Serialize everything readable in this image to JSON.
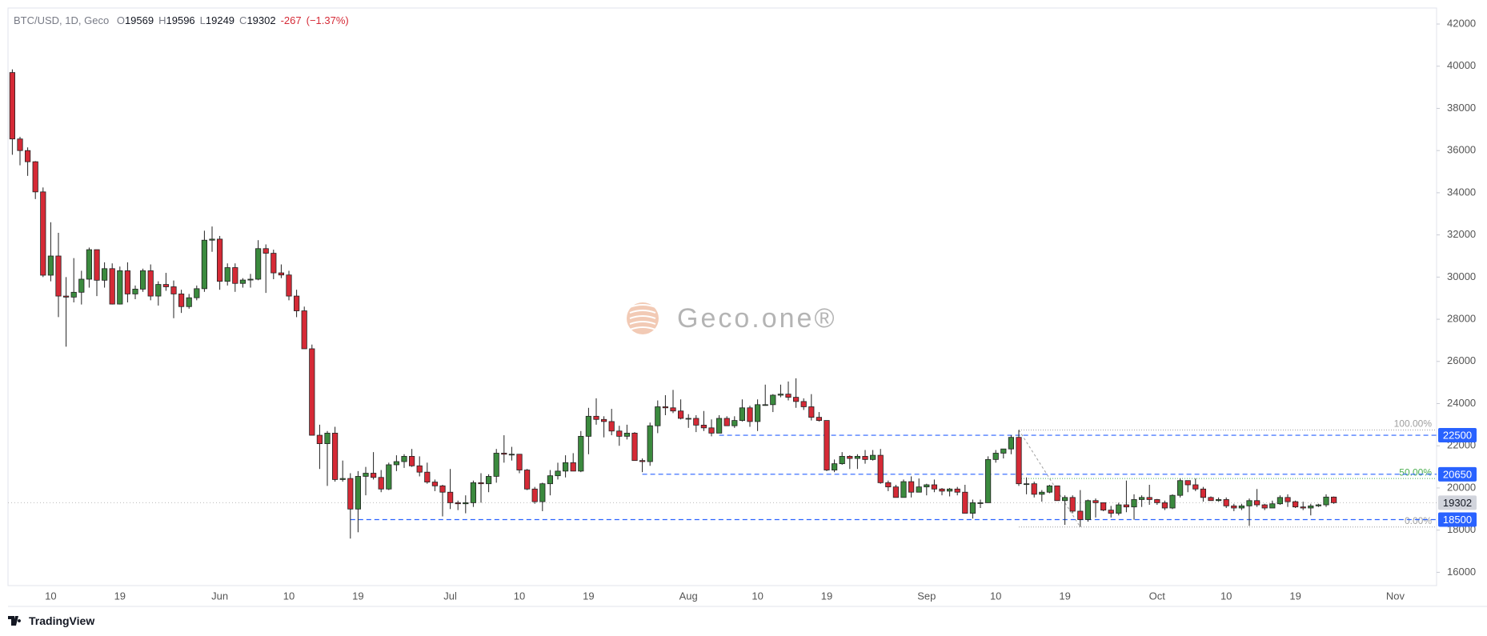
{
  "chart_data": {
    "type": "candlestick",
    "legend": {
      "symbol": "BTC/USD, 1D, Geco",
      "fields": [
        {
          "key": "O",
          "value": 19569
        },
        {
          "key": "H",
          "value": 19596
        },
        {
          "key": "L",
          "value": 19249
        },
        {
          "key": "C",
          "value": 19302
        }
      ],
      "change": -267,
      "change_pct": {
        "value": -1.37,
        "label": "(−1.37%)"
      }
    },
    "watermark": "Geco.one®",
    "footer": "TradingView",
    "up_color": "#3b8a3e",
    "down_color": "#d52a36",
    "level_color": "#2962ff",
    "fib_color": "#9e9e9e",
    "fib_mid_color": "#4caf50",
    "ylim": [
      15370,
      42760
    ],
    "yticks": [
      16000,
      18000,
      20000,
      22000,
      24000,
      26000,
      28000,
      30000,
      32000,
      34000,
      36000,
      38000,
      40000,
      42000
    ],
    "price_levels": [
      22500,
      20650,
      18500
    ],
    "last_price": 19302,
    "fib": {
      "high": 22750,
      "low": 18150,
      "levels": [
        {
          "value": 100,
          "label": "100.00%"
        },
        {
          "value": 50,
          "label": "50.00%"
        },
        {
          "value": 0,
          "label": "0.00%"
        }
      ]
    },
    "categories": [
      null,
      null,
      null,
      null,
      null,
      "10",
      null,
      null,
      null,
      null,
      null,
      null,
      null,
      null,
      "19",
      null,
      null,
      null,
      null,
      null,
      null,
      null,
      null,
      null,
      null,
      null,
      null,
      "Jun",
      null,
      null,
      null,
      null,
      null,
      null,
      null,
      null,
      "10",
      null,
      null,
      null,
      null,
      null,
      null,
      null,
      null,
      "19",
      null,
      null,
      null,
      null,
      null,
      null,
      null,
      null,
      null,
      null,
      null,
      "Jul",
      null,
      null,
      null,
      null,
      null,
      null,
      null,
      null,
      "10",
      null,
      null,
      null,
      null,
      null,
      null,
      null,
      null,
      "19",
      null,
      null,
      null,
      null,
      null,
      null,
      null,
      null,
      null,
      null,
      null,
      null,
      "Aug",
      null,
      null,
      null,
      null,
      null,
      null,
      null,
      null,
      "10",
      null,
      null,
      null,
      null,
      null,
      null,
      null,
      null,
      "19",
      null,
      null,
      null,
      null,
      null,
      null,
      null,
      null,
      null,
      null,
      null,
      null,
      "Sep",
      null,
      null,
      null,
      null,
      null,
      null,
      null,
      null,
      "10",
      null,
      null,
      null,
      null,
      null,
      null,
      null,
      null,
      "19",
      null,
      null,
      null,
      null,
      null,
      null,
      null,
      null,
      null,
      null,
      null,
      "Oct",
      null,
      null,
      null,
      null,
      null,
      null,
      null,
      null,
      "10",
      null,
      null,
      null,
      null,
      null,
      null,
      null,
      null,
      "19",
      null,
      null,
      null,
      null,
      null,
      null,
      null,
      null,
      null,
      null,
      null,
      null,
      "Nov",
      null,
      null,
      null,
      null,
      null
    ],
    "ohlc": [
      [
        39700,
        39850,
        35800,
        36550
      ],
      [
        36550,
        36650,
        35300,
        36000
      ],
      [
        36000,
        36150,
        34800,
        35470
      ],
      [
        35470,
        35500,
        33700,
        34040
      ],
      [
        34040,
        34250,
        30000,
        30090
      ],
      [
        30090,
        32600,
        29800,
        31000
      ],
      [
        31000,
        32100,
        28100,
        29100
      ],
      [
        29100,
        30000,
        26700,
        29050
      ],
      [
        29050,
        30900,
        28800,
        29280
      ],
      [
        29280,
        30300,
        28700,
        29900
      ],
      [
        29900,
        31400,
        29500,
        31300
      ],
      [
        31300,
        31300,
        29100,
        29850
      ],
      [
        29850,
        30700,
        29500,
        30400
      ],
      [
        30400,
        30650,
        28700,
        28720
      ],
      [
        28720,
        30500,
        28700,
        30300
      ],
      [
        30300,
        30700,
        28800,
        29200
      ],
      [
        29200,
        29600,
        28950,
        29430
      ],
      [
        29430,
        30400,
        29300,
        30300
      ],
      [
        30300,
        30600,
        28900,
        29100
      ],
      [
        29100,
        29800,
        28650,
        29650
      ],
      [
        29650,
        30200,
        29350,
        29540
      ],
      [
        29540,
        29840,
        28050,
        29200
      ],
      [
        29200,
        29400,
        28300,
        28600
      ],
      [
        28600,
        29200,
        28500,
        29020
      ],
      [
        29020,
        29600,
        28900,
        29450
      ],
      [
        29450,
        32200,
        29300,
        31750
      ],
      [
        31750,
        32400,
        31200,
        31800
      ],
      [
        31800,
        31950,
        29400,
        29800
      ],
      [
        29800,
        30650,
        29600,
        30450
      ],
      [
        30450,
        30650,
        29300,
        29700
      ],
      [
        29700,
        29950,
        29500,
        29860
      ],
      [
        29860,
        30150,
        29500,
        29900
      ],
      [
        29900,
        31750,
        29850,
        31350
      ],
      [
        31350,
        31550,
        29250,
        31130
      ],
      [
        31130,
        31300,
        29900,
        30200
      ],
      [
        30200,
        30600,
        29950,
        30100
      ],
      [
        30100,
        30300,
        28900,
        29100
      ],
      [
        29100,
        29400,
        28100,
        28400
      ],
      [
        28400,
        28600,
        26600,
        26600
      ],
      [
        26600,
        26800,
        22600,
        22500
      ],
      [
        22500,
        23000,
        20900,
        22100
      ],
      [
        22100,
        22700,
        20100,
        22600
      ],
      [
        22600,
        22900,
        20300,
        20400
      ],
      [
        20400,
        21300,
        20300,
        20450
      ],
      [
        20450,
        20700,
        17600,
        19000
      ],
      [
        19000,
        20800,
        17900,
        20550
      ],
      [
        20550,
        21000,
        19650,
        20700
      ],
      [
        20700,
        21700,
        20400,
        20500
      ],
      [
        20500,
        20850,
        19800,
        19950
      ],
      [
        19950,
        21200,
        19900,
        21100
      ],
      [
        21100,
        21550,
        20800,
        21250
      ],
      [
        21250,
        21600,
        20950,
        21500
      ],
      [
        21500,
        21850,
        21000,
        21050
      ],
      [
        21050,
        21500,
        20550,
        20750
      ],
      [
        20750,
        21200,
        20200,
        20280
      ],
      [
        20280,
        20400,
        19850,
        20100
      ],
      [
        20100,
        20150,
        18650,
        19800
      ],
      [
        19800,
        20900,
        19000,
        19300
      ],
      [
        19300,
        19400,
        18950,
        19250
      ],
      [
        19250,
        19650,
        18800,
        19300
      ],
      [
        19300,
        20350,
        19100,
        20250
      ],
      [
        20250,
        20700,
        19300,
        20200
      ],
      [
        20200,
        20650,
        19800,
        20550
      ],
      [
        20550,
        21850,
        20250,
        21650
      ],
      [
        21650,
        22500,
        21200,
        21600
      ],
      [
        21600,
        21950,
        21300,
        21600
      ],
      [
        21600,
        21600,
        20700,
        20850
      ],
      [
        20850,
        20900,
        19900,
        19950
      ],
      [
        19950,
        20050,
        19250,
        19350
      ],
      [
        19350,
        20250,
        18900,
        20200
      ],
      [
        20200,
        20850,
        19650,
        20580
      ],
      [
        20580,
        21200,
        20400,
        20800
      ],
      [
        20800,
        21550,
        20500,
        21200
      ],
      [
        21200,
        21650,
        20800,
        20800
      ],
      [
        20800,
        22700,
        20750,
        22450
      ],
      [
        22450,
        23800,
        21600,
        23400
      ],
      [
        23400,
        24250,
        23000,
        23250
      ],
      [
        23250,
        23400,
        22400,
        23150
      ],
      [
        23150,
        23750,
        22500,
        22700
      ],
      [
        22700,
        22950,
        22000,
        22450
      ],
      [
        22450,
        23000,
        22300,
        22600
      ],
      [
        22600,
        22650,
        21300,
        21300
      ],
      [
        21300,
        21400,
        20750,
        21250
      ],
      [
        21250,
        23100,
        21050,
        22950
      ],
      [
        22950,
        24150,
        22600,
        23850
      ],
      [
        23850,
        24400,
        23450,
        23800
      ],
      [
        23800,
        24650,
        23550,
        23650
      ],
      [
        23650,
        24200,
        23250,
        23300
      ],
      [
        23300,
        23500,
        22850,
        23300
      ],
      [
        23300,
        23450,
        22650,
        22980
      ],
      [
        22980,
        23650,
        22700,
        22850
      ],
      [
        22850,
        23250,
        22450,
        22600
      ],
      [
        22600,
        23450,
        22600,
        23300
      ],
      [
        23300,
        23400,
        22950,
        22950
      ],
      [
        22950,
        23400,
        22850,
        23200
      ],
      [
        23200,
        24200,
        23150,
        23800
      ],
      [
        23800,
        23900,
        22900,
        23150
      ],
      [
        23150,
        24200,
        22700,
        23950
      ],
      [
        23950,
        24900,
        23900,
        23950
      ],
      [
        23950,
        24450,
        23600,
        24400
      ],
      [
        24400,
        24900,
        24300,
        24450
      ],
      [
        24450,
        25050,
        24150,
        24300
      ],
      [
        24300,
        25200,
        23800,
        24100
      ],
      [
        24100,
        24250,
        23700,
        23850
      ],
      [
        23850,
        24450,
        23200,
        23350
      ],
      [
        23350,
        23600,
        23150,
        23200
      ],
      [
        23200,
        23200,
        20800,
        20850
      ],
      [
        20850,
        21350,
        20750,
        21150
      ],
      [
        21150,
        21700,
        21100,
        21500
      ],
      [
        21500,
        21550,
        20900,
        21400
      ],
      [
        21400,
        21600,
        20900,
        21500
      ],
      [
        21500,
        21800,
        21150,
        21350
      ],
      [
        21350,
        21800,
        21300,
        21550
      ],
      [
        21550,
        21850,
        20200,
        20250
      ],
      [
        20250,
        20350,
        19850,
        20050
      ],
      [
        20050,
        20150,
        19550,
        19550
      ],
      [
        19550,
        20400,
        19550,
        20300
      ],
      [
        20300,
        20550,
        19550,
        19800
      ],
      [
        19800,
        20450,
        19800,
        20050
      ],
      [
        20050,
        20200,
        19650,
        20150
      ],
      [
        20150,
        20400,
        19800,
        19950
      ],
      [
        19950,
        20000,
        19650,
        19850
      ],
      [
        19850,
        20000,
        19600,
        19950
      ],
      [
        19950,
        20050,
        19650,
        19800
      ],
      [
        19800,
        20150,
        18800,
        18800
      ],
      [
        18800,
        19450,
        18550,
        19300
      ],
      [
        19300,
        19450,
        19050,
        19300
      ],
      [
        19300,
        21500,
        19300,
        21350
      ],
      [
        21350,
        21800,
        21200,
        21650
      ],
      [
        21650,
        21850,
        21400,
        21850
      ],
      [
        21850,
        22500,
        21600,
        22400
      ],
      [
        22400,
        22750,
        20100,
        20200
      ],
      [
        20200,
        20500,
        19700,
        20200
      ],
      [
        20200,
        20300,
        19550,
        19700
      ],
      [
        19700,
        19900,
        19350,
        19800
      ],
      [
        19800,
        20150,
        19750,
        20100
      ],
      [
        20100,
        20100,
        19400,
        19400
      ],
      [
        19400,
        19650,
        18250,
        19550
      ],
      [
        19550,
        19650,
        18800,
        18900
      ],
      [
        18900,
        19900,
        18150,
        18500
      ],
      [
        18500,
        19450,
        18400,
        19400
      ],
      [
        19400,
        19500,
        18600,
        19300
      ],
      [
        19300,
        19300,
        18900,
        18950
      ],
      [
        18950,
        19150,
        18600,
        18800
      ],
      [
        18800,
        19300,
        18700,
        19200
      ],
      [
        19200,
        20350,
        18850,
        19100
      ],
      [
        19100,
        19700,
        18500,
        19450
      ],
      [
        19450,
        19650,
        19100,
        19550
      ],
      [
        19550,
        20150,
        19200,
        19450
      ],
      [
        19450,
        19480,
        19200,
        19300
      ],
      [
        19300,
        19400,
        18950,
        19050
      ],
      [
        19050,
        19700,
        19000,
        19650
      ],
      [
        19650,
        20450,
        19550,
        20350
      ],
      [
        20350,
        20350,
        19800,
        20150
      ],
      [
        20150,
        20450,
        19850,
        19950
      ],
      [
        19950,
        20050,
        19350,
        19550
      ],
      [
        19550,
        19600,
        19400,
        19400
      ],
      [
        19400,
        19550,
        19350,
        19450
      ],
      [
        19450,
        19550,
        19050,
        19150
      ],
      [
        19150,
        19250,
        18900,
        19050
      ],
      [
        19050,
        19250,
        18950,
        19150
      ],
      [
        19150,
        19500,
        18200,
        19400
      ],
      [
        19400,
        19950,
        19100,
        19200
      ],
      [
        19200,
        19250,
        18950,
        19050
      ],
      [
        19050,
        19400,
        19050,
        19250
      ],
      [
        19250,
        19650,
        19200,
        19550
      ],
      [
        19550,
        19700,
        19100,
        19350
      ],
      [
        19350,
        19400,
        19050,
        19100
      ],
      [
        19100,
        19350,
        18950,
        19050
      ],
      [
        19050,
        19250,
        18700,
        19150
      ],
      [
        19150,
        19250,
        19100,
        19200
      ],
      [
        19200,
        19700,
        19100,
        19569
      ],
      [
        19569,
        19596,
        19249,
        19302
      ],
      null,
      null,
      null,
      null,
      null,
      null,
      null,
      null,
      null,
      null,
      null,
      null,
      null
    ]
  }
}
